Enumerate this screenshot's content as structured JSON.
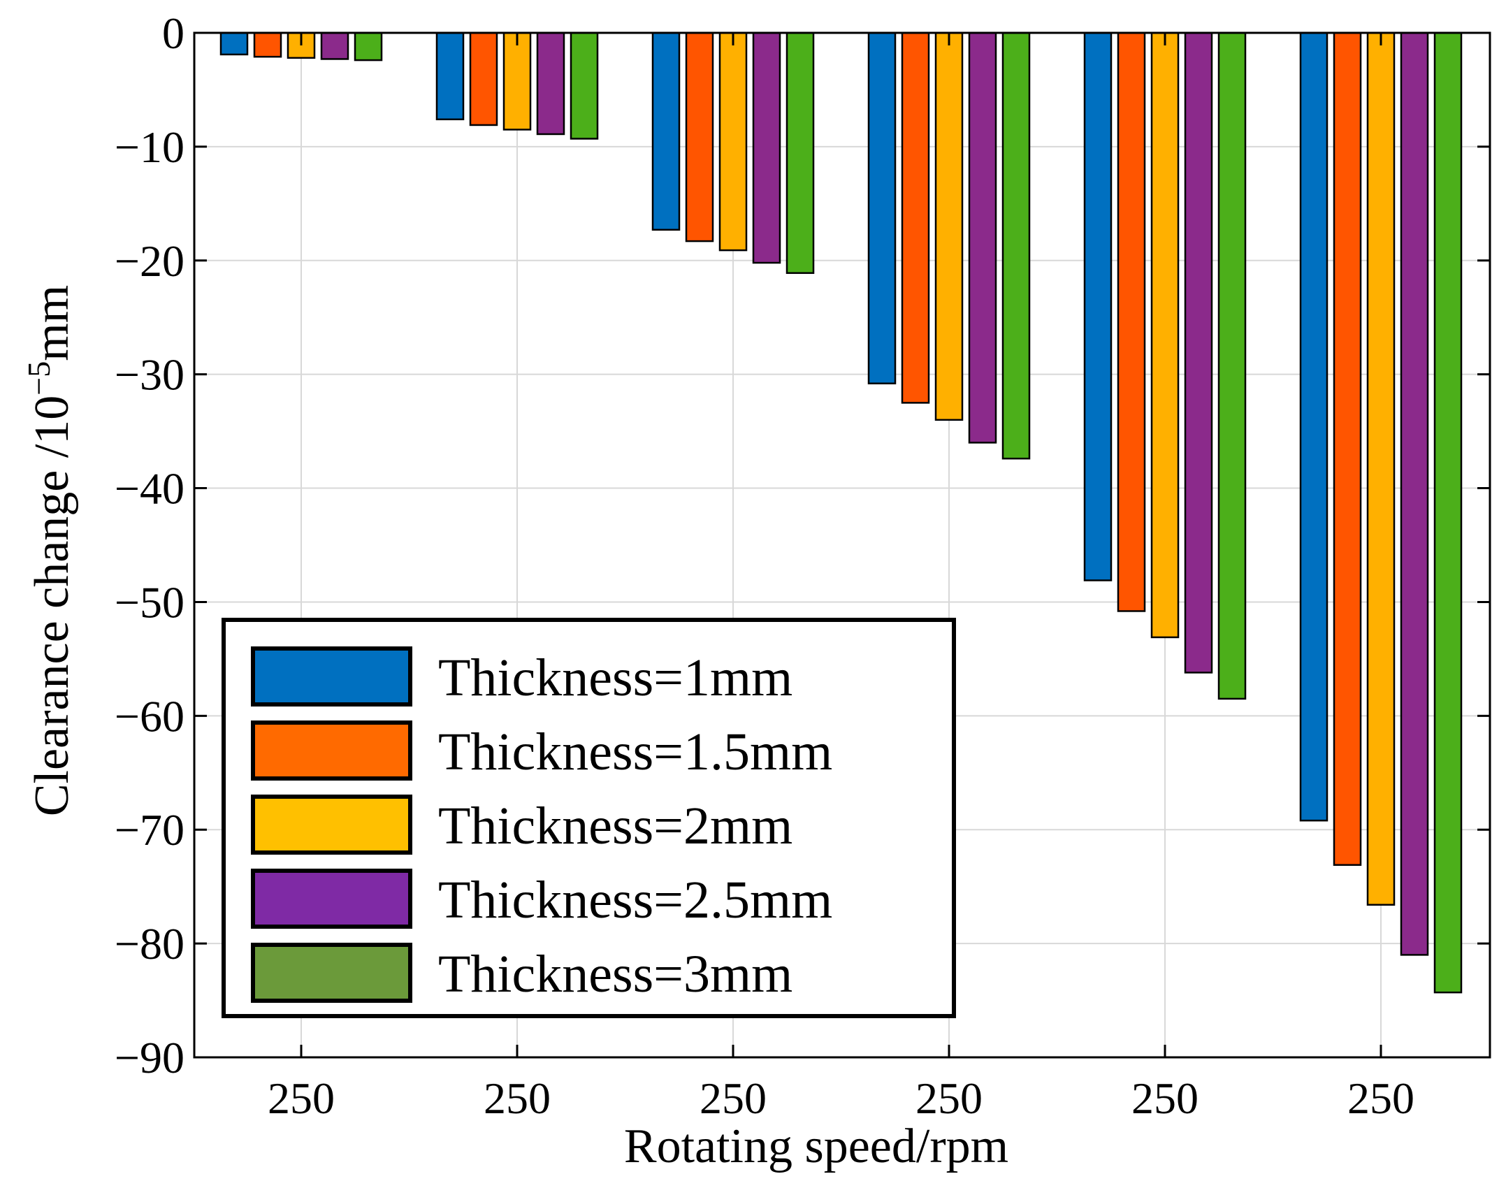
{
  "chart_data": {
    "type": "bar",
    "xlabel": "Rotating speed/rpm",
    "ylabel": "Clearance change /10",
    "ylabel_superscript": "−5",
    "ylabel_unit": "mm",
    "categories": [
      "250",
      "250",
      "250",
      "250",
      "250",
      "250"
    ],
    "ylim": [
      -90,
      0
    ],
    "yticks": [
      {
        "value": 0,
        "label": "0"
      },
      {
        "value": -10,
        "label": "−10"
      },
      {
        "value": -20,
        "label": "−20"
      },
      {
        "value": -30,
        "label": "−30"
      },
      {
        "value": -40,
        "label": "−40"
      },
      {
        "value": -50,
        "label": "−50"
      },
      {
        "value": -60,
        "label": "−60"
      },
      {
        "value": -70,
        "label": "−70"
      },
      {
        "value": -80,
        "label": "−80"
      },
      {
        "value": -90,
        "label": "−90"
      }
    ],
    "grid": true,
    "legend_position": "bottom-left",
    "series": [
      {
        "name": "Thickness=1mm",
        "color": "#0070C0",
        "legend_color": "#0070C0",
        "values": [
          -1.9,
          -7.6,
          -17.3,
          -30.8,
          -48.1,
          -69.2
        ]
      },
      {
        "name": "Thickness=1.5mm",
        "color": "#FF5500",
        "legend_color": "#FF6A00",
        "values": [
          -2.1,
          -8.1,
          -18.3,
          -32.5,
          -50.8,
          -73.1
        ]
      },
      {
        "name": "Thickness=2mm",
        "color": "#FFB000",
        "legend_color": "#FFC000",
        "values": [
          -2.2,
          -8.5,
          -19.1,
          -34.0,
          -53.1,
          -76.6
        ]
      },
      {
        "name": "Thickness=2.5mm",
        "color": "#8B2A8B",
        "legend_color": "#7F2AA5",
        "values": [
          -2.3,
          -8.9,
          -20.2,
          -36.0,
          -56.2,
          -81.0
        ]
      },
      {
        "name": "Thickness=3mm",
        "color": "#4CAF1A",
        "legend_color": "#6B9A3A",
        "values": [
          -2.4,
          -9.3,
          -21.1,
          -37.4,
          -58.5,
          -84.3
        ]
      }
    ]
  }
}
